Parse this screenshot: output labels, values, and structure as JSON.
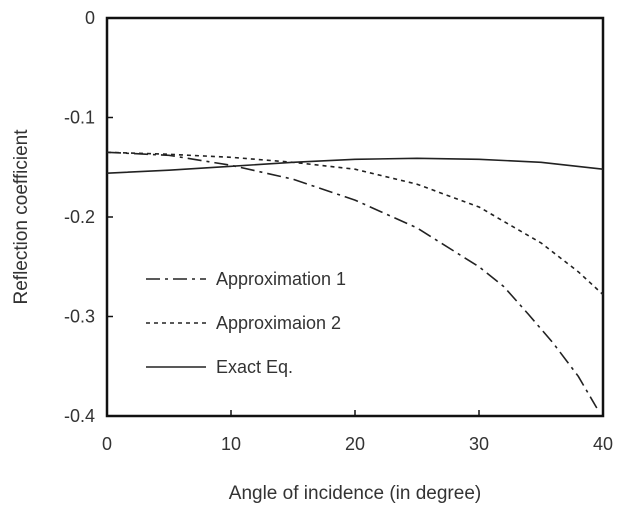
{
  "chart_data": {
    "type": "line",
    "xlabel": "Angle of incidence (in degree)",
    "ylabel": "Reflection coefficient",
    "xlim": [
      0,
      40
    ],
    "ylim": [
      -0.4,
      0
    ],
    "x_ticks": [
      0,
      10,
      20,
      30,
      40
    ],
    "y_ticks": [
      0,
      -0.1,
      -0.2,
      -0.3,
      -0.4
    ],
    "x_tick_labels": [
      "0",
      "10",
      "20",
      "30",
      "40"
    ],
    "y_tick_labels": [
      "0",
      "-0.1",
      "-0.2",
      "-0.3",
      "-0.4"
    ],
    "grid": false,
    "legend_position": "bottom-left",
    "series": [
      {
        "name": "Approximation 1",
        "style": "dash-dot",
        "x": [
          0,
          5,
          10,
          15,
          20,
          25,
          30,
          32,
          34,
          36,
          38,
          39.5
        ],
        "y": [
          -0.135,
          -0.138,
          -0.148,
          -0.162,
          -0.183,
          -0.211,
          -0.25,
          -0.27,
          -0.298,
          -0.327,
          -0.36,
          -0.392
        ]
      },
      {
        "name": "Approximaion 2",
        "style": "dotted",
        "x": [
          0,
          5,
          10,
          15,
          20,
          25,
          30,
          35,
          38,
          40
        ],
        "y": [
          -0.135,
          -0.137,
          -0.14,
          -0.145,
          -0.152,
          -0.167,
          -0.19,
          -0.226,
          -0.255,
          -0.278
        ]
      },
      {
        "name": "Exact Eq.",
        "style": "solid",
        "x": [
          0,
          5,
          10,
          15,
          20,
          25,
          30,
          35,
          40
        ],
        "y": [
          -0.156,
          -0.153,
          -0.149,
          -0.145,
          -0.142,
          -0.141,
          -0.142,
          -0.145,
          -0.152
        ]
      }
    ]
  }
}
